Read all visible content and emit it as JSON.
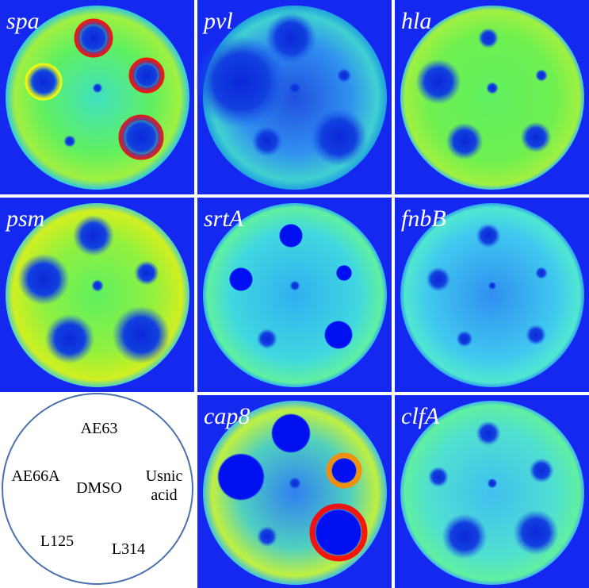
{
  "panels": [
    {
      "label": "spa"
    },
    {
      "label": "pvl"
    },
    {
      "label": "hla"
    },
    {
      "label": "psm"
    },
    {
      "label": "srtA"
    },
    {
      "label": "fnbB"
    },
    {
      "label": "cap8"
    },
    {
      "label": "clfA"
    }
  ],
  "key": {
    "wells": [
      "AE63",
      "AE66A",
      "DMSO",
      "Usnic acid",
      "L125",
      "L314"
    ]
  }
}
